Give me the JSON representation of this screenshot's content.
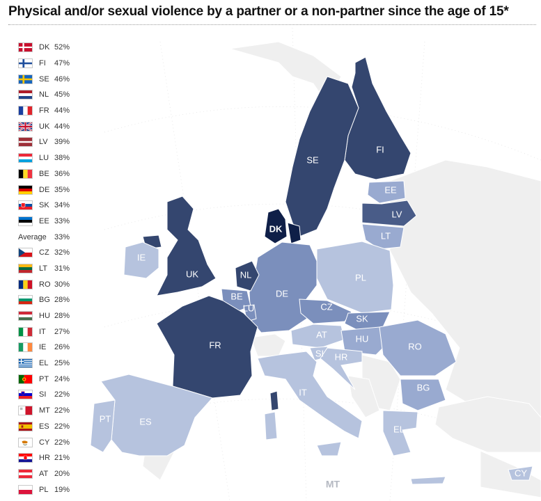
{
  "title": "Physical and/or sexual violence by a partner or a non-partner since the age of 15*",
  "colors": {
    "c52": "#0f1f48",
    "c44": "#34466f",
    "c38": "#495c88",
    "c33": "#7b8fbc",
    "c28": "#99aad0",
    "c21": "#b6c3de",
    "nodata": "#efefef",
    "sea": "#ffffff"
  },
  "legend": [
    {
      "code": "DK",
      "value": "52%",
      "flag": "dk"
    },
    {
      "code": "FI",
      "value": "47%",
      "flag": "fi"
    },
    {
      "code": "SE",
      "value": "46%",
      "flag": "se"
    },
    {
      "code": "NL",
      "value": "45%",
      "flag": "nl"
    },
    {
      "code": "FR",
      "value": "44%",
      "flag": "fr"
    },
    {
      "code": "UK",
      "value": "44%",
      "flag": "uk"
    },
    {
      "code": "LV",
      "value": "39%",
      "flag": "lv"
    },
    {
      "code": "LU",
      "value": "38%",
      "flag": "lu"
    },
    {
      "code": "BE",
      "value": "36%",
      "flag": "be"
    },
    {
      "code": "DE",
      "value": "35%",
      "flag": "de"
    },
    {
      "code": "SK",
      "value": "34%",
      "flag": "sk"
    },
    {
      "code": "EE",
      "value": "33%",
      "flag": "ee"
    },
    {
      "code": "Average",
      "value": "33%",
      "flag": null
    },
    {
      "code": "CZ",
      "value": "32%",
      "flag": "cz"
    },
    {
      "code": "LT",
      "value": "31%",
      "flag": "lt"
    },
    {
      "code": "RO",
      "value": "30%",
      "flag": "ro"
    },
    {
      "code": "BG",
      "value": "28%",
      "flag": "bg"
    },
    {
      "code": "HU",
      "value": "28%",
      "flag": "hu"
    },
    {
      "code": "IT",
      "value": "27%",
      "flag": "it"
    },
    {
      "code": "IE",
      "value": "26%",
      "flag": "ie"
    },
    {
      "code": "EL",
      "value": "25%",
      "flag": "el"
    },
    {
      "code": "PT",
      "value": "24%",
      "flag": "pt"
    },
    {
      "code": "SI",
      "value": "22%",
      "flag": "si"
    },
    {
      "code": "MT",
      "value": "22%",
      "flag": "mt"
    },
    {
      "code": "ES",
      "value": "22%",
      "flag": "es"
    },
    {
      "code": "CY",
      "value": "22%",
      "flag": "cy"
    },
    {
      "code": "HR",
      "value": "21%",
      "flag": "hr"
    },
    {
      "code": "AT",
      "value": "20%",
      "flag": "at"
    },
    {
      "code": "PL",
      "value": "19%",
      "flag": "pl"
    }
  ],
  "map_labels": {
    "DK": "DK",
    "FI": "FI",
    "SE": "SE",
    "NL": "NL",
    "FR": "FR",
    "UK": "UK",
    "LV": "LV",
    "LU": "LU",
    "BE": "BE",
    "DE": "DE",
    "SK": "SK",
    "EE": "EE",
    "CZ": "CZ",
    "LT": "LT",
    "RO": "RO",
    "BG": "BG",
    "HU": "HU",
    "IT": "IT",
    "IE": "IE",
    "EL": "EL",
    "PT": "PT",
    "SI": "SI",
    "MT": "MT",
    "ES": "ES",
    "CY": "CY",
    "HR": "HR",
    "AT": "AT",
    "PL": "PL"
  }
}
